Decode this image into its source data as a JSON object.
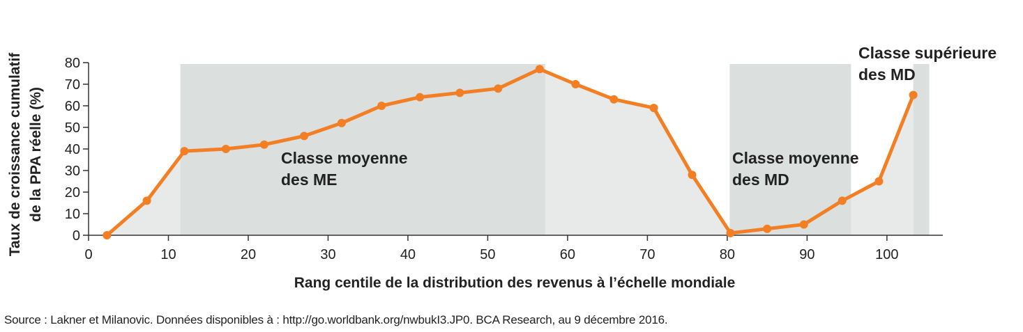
{
  "chart_data": {
    "type": "line",
    "xlabel": "Rang centile de la distribution des revenus à l’échelle mondiale",
    "ylabel_lines": [
      "Taux de croissance cumulatif",
      "de la PPA réelle (%)"
    ],
    "xlim": [
      0,
      107
    ],
    "ylim": [
      0,
      80
    ],
    "x_ticks": [
      "0",
      "10",
      "20",
      "30",
      "40",
      "50",
      "60",
      "70",
      "80",
      "90",
      "100"
    ],
    "y_ticks": [
      "0",
      "10",
      "20",
      "30",
      "40",
      "50",
      "60",
      "70",
      "80"
    ],
    "grid": false,
    "line_color": "#f37f24",
    "area_color": "#e8eaea",
    "band_color": "#dbdfde",
    "series": [
      {
        "x": [
          2.3,
          7.3,
          12,
          17.2,
          22,
          27,
          31.7,
          36.7,
          41.5,
          46.5,
          51.3,
          56.5,
          61,
          65.8,
          70.8,
          75.6,
          80.4,
          85,
          89.6,
          94.4,
          99,
          103.3
        ],
        "values": [
          0,
          16,
          39,
          40,
          42,
          46,
          52,
          60,
          64,
          66,
          68,
          77,
          70,
          63,
          59,
          28,
          1,
          3,
          5,
          16,
          25,
          65
        ]
      }
    ],
    "shaded_regions": [
      {
        "x_start": 11.5,
        "x_end": 57.2,
        "label_lines": [
          "Classe moyenne",
          "des ME"
        ]
      },
      {
        "x_start": 80.3,
        "x_end": 95.5,
        "label_lines": [
          "Classe moyenne",
          "des MD"
        ]
      },
      {
        "x_start": 103.3,
        "x_end": 105.3,
        "label_lines": [
          "Classe supérieure",
          "des MD"
        ]
      }
    ]
  },
  "source": "Source : Lakner et Milanovic. Données disponibles à : http://go.worldbank.org/nwbukI3.JP0. BCA Research, au 9 décembre 2016."
}
